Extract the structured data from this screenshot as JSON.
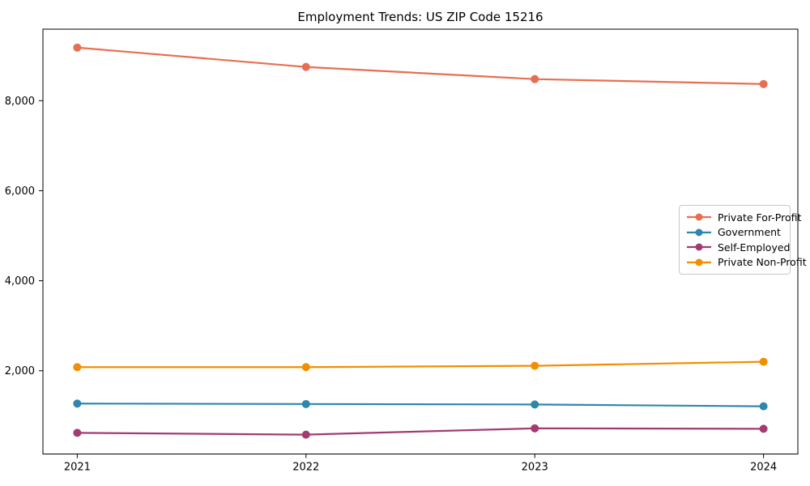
{
  "page": {
    "background_color": "#ffffff",
    "text_color": "#000000",
    "legend_border_color": "#c8c8c8"
  },
  "chart_data": {
    "type": "line",
    "title": "Employment Trends: US ZIP Code 15216",
    "xlabel": "",
    "ylabel": "",
    "x": [
      2021,
      2022,
      2023,
      2024
    ],
    "xtick_labels": [
      "2021",
      "2022",
      "2023",
      "2024"
    ],
    "series": [
      {
        "name": "Private For-Profit",
        "color": "#E76F51",
        "values": [
          9180,
          8750,
          8480,
          8370
        ]
      },
      {
        "name": "Government",
        "color": "#2E86AB",
        "values": [
          1270,
          1260,
          1250,
          1210
        ]
      },
      {
        "name": "Self-Employed",
        "color": "#A23B72",
        "values": [
          620,
          580,
          720,
          710
        ]
      },
      {
        "name": "Private Non-Profit",
        "color": "#F18F01",
        "values": [
          2080,
          2080,
          2110,
          2200
        ]
      }
    ],
    "yticks": [
      2000,
      4000,
      6000,
      8000
    ],
    "ytick_labels": [
      "2,000",
      "4,000",
      "6,000",
      "8,000"
    ],
    "xlim": [
      2020.85,
      2024.15
    ],
    "ylim": [
      150,
      9590
    ],
    "grid": false,
    "legend": {
      "position": "center-right",
      "entries": [
        "Private For-Profit",
        "Government",
        "Self-Employed",
        "Private Non-Profit"
      ]
    },
    "marker": "circle",
    "marker_radius": 5,
    "line_width": 2.2
  }
}
